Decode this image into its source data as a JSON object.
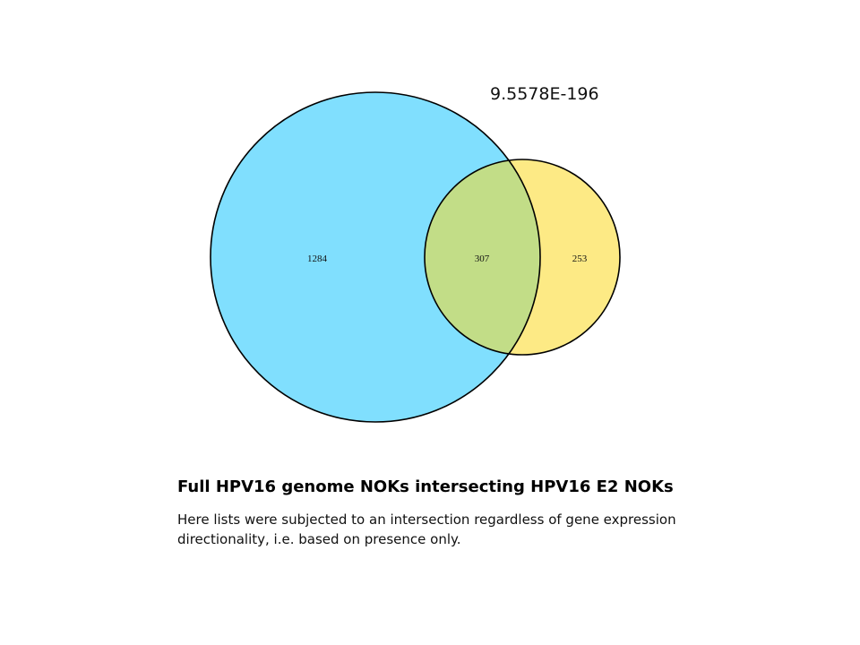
{
  "pvalue_label": "9.5578E-196",
  "caption": {
    "title": "Full HPV16 genome NOKs intersecting HPV16 E2 NOKs",
    "body": "Here lists were subjected to an intersection regardless of gene expression directionality, i.e. based on presence only."
  },
  "colors": {
    "left_set": "#80DFFE",
    "right_set": "#FDEA85",
    "overlap": "#C2DD87",
    "outline": "#000000"
  },
  "venn": {
    "left_only": "1284",
    "intersection": "307",
    "right_only": "253"
  }
}
